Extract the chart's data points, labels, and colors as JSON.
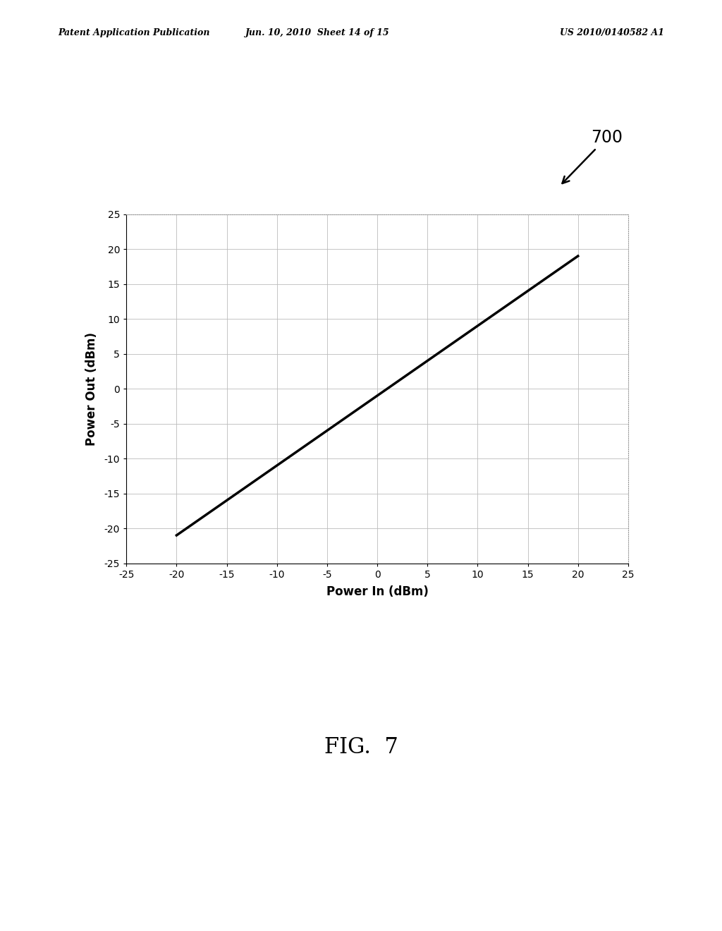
{
  "xlabel": "Power In (dBm)",
  "ylabel": "Power Out (dBm)",
  "x_start": -20,
  "x_end": 20,
  "y_start": -21,
  "y_end": 19,
  "xlim": [
    -25,
    25
  ],
  "ylim": [
    -25,
    25
  ],
  "xticks": [
    -25,
    -20,
    -15,
    -10,
    -5,
    0,
    5,
    10,
    15,
    20,
    25
  ],
  "yticks": [
    -25,
    -20,
    -15,
    -10,
    -5,
    0,
    5,
    10,
    15,
    20,
    25
  ],
  "line_color": "#000000",
  "line_width": 2.5,
  "grid_color_major": "#bbbbbb",
  "grid_color_border": "#aaaaaa",
  "background_color": "#ffffff",
  "fig_background": "#ffffff",
  "header_left": "Patent Application Publication",
  "header_mid": "Jun. 10, 2010  Sheet 14 of 15",
  "header_right": "US 2010/0140582 A1",
  "label_700": "700",
  "label_fig": "FIG.  7",
  "font_size_axis_label": 12,
  "font_size_tick": 10,
  "font_size_header": 9,
  "font_size_fig_label": 22,
  "font_size_700": 17
}
